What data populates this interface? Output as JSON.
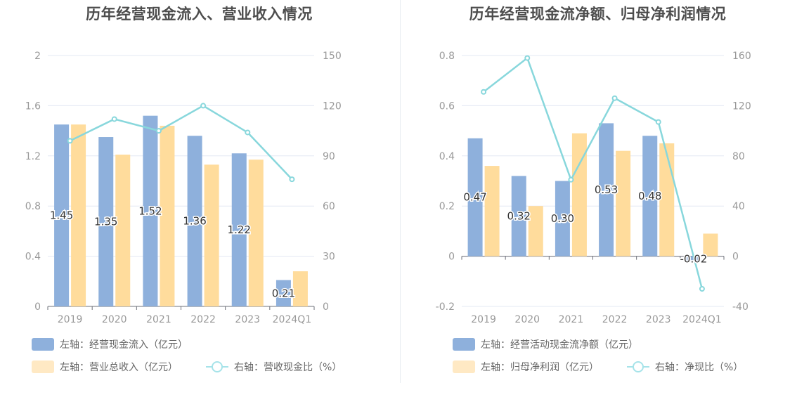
{
  "colors": {
    "inflow": "#8eb0dc",
    "revenue": "#ffdc9c",
    "ratio": "#88d7dc",
    "legend_inflow": "#8eb0dc",
    "legend_revenue": "#ffe9c4",
    "legend_ratio": "#a6e3e9",
    "grid": "#e3e8f3",
    "axis_text": "#999999"
  },
  "chart_data": [
    {
      "type": "bar",
      "title": "历年经营现金流入、营业收入情况",
      "categories": [
        "2019",
        "2020",
        "2021",
        "2022",
        "2023",
        "2024Q1"
      ],
      "left_axis": {
        "ylim": [
          0,
          2
        ],
        "ticks": [
          "0",
          "0.4",
          "0.8",
          "1.2",
          "1.6",
          "2"
        ]
      },
      "right_axis": {
        "ylim": [
          0,
          150
        ],
        "ticks": [
          "0",
          "30",
          "60",
          "90",
          "120",
          "150"
        ]
      },
      "series": [
        {
          "name": "左轴：经营现金流入（亿元）",
          "type": "bar",
          "axis": "left",
          "values": [
            1.45,
            1.35,
            1.52,
            1.36,
            1.22,
            0.21
          ],
          "labels": [
            "1.45",
            "1.35",
            "1.52",
            "1.36",
            "1.22",
            "0.21"
          ]
        },
        {
          "name": "左轴：营业总收入（亿元）",
          "type": "bar",
          "axis": "left",
          "values": [
            1.45,
            1.21,
            1.44,
            1.13,
            1.17,
            0.28
          ]
        },
        {
          "name": "右轴：营收现金比（%）",
          "type": "line",
          "axis": "right",
          "values": [
            99,
            112,
            105,
            120,
            104,
            76
          ]
        }
      ]
    },
    {
      "type": "bar",
      "title": "历年经营现金流净额、归母净利润情况",
      "categories": [
        "2019",
        "2020",
        "2021",
        "2022",
        "2023",
        "2024Q1"
      ],
      "left_axis": {
        "ylim": [
          -0.2,
          0.8
        ],
        "ticks": [
          "-0.2",
          "0",
          "0.2",
          "0.4",
          "0.6",
          "0.8"
        ]
      },
      "right_axis": {
        "ylim": [
          -40,
          160
        ],
        "ticks": [
          "-40",
          "0",
          "40",
          "80",
          "120",
          "160"
        ]
      },
      "series": [
        {
          "name": "左轴：经营活动现金流净额（亿元）",
          "type": "bar",
          "axis": "left",
          "values": [
            0.47,
            0.32,
            0.3,
            0.53,
            0.48,
            -0.02
          ],
          "labels": [
            "0.47",
            "0.32",
            "0.30",
            "0.53",
            "0.48",
            "-0.02"
          ]
        },
        {
          "name": "左轴：归母净利润（亿元）",
          "type": "bar",
          "axis": "left",
          "values": [
            0.36,
            0.2,
            0.49,
            0.42,
            0.45,
            0.09
          ]
        },
        {
          "name": "右轴：净现比（%）",
          "type": "line",
          "axis": "right",
          "values": [
            131,
            158,
            61,
            126,
            107,
            -26
          ]
        }
      ]
    }
  ]
}
